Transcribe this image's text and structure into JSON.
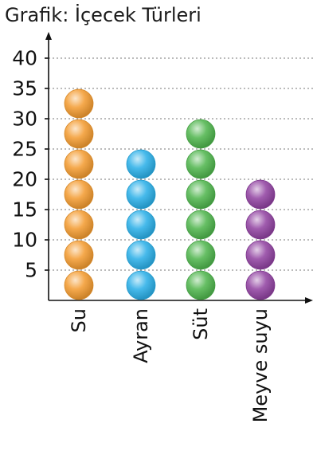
{
  "chart_data": {
    "type": "scatter",
    "title": "Grafik: İçecek Türleri",
    "categories": [
      "Su",
      "Ayran",
      "Süt",
      "Meyve suyu"
    ],
    "values": [
      35,
      25,
      30,
      20
    ],
    "unit_per_bead": 5,
    "ylim": [
      0,
      40
    ],
    "yticks": [
      5,
      10,
      15,
      20,
      25,
      30,
      35,
      40
    ],
    "grid": true,
    "colors": [
      "#f39a2d",
      "#27aee8",
      "#4cb44a",
      "#8f3fa0"
    ]
  }
}
